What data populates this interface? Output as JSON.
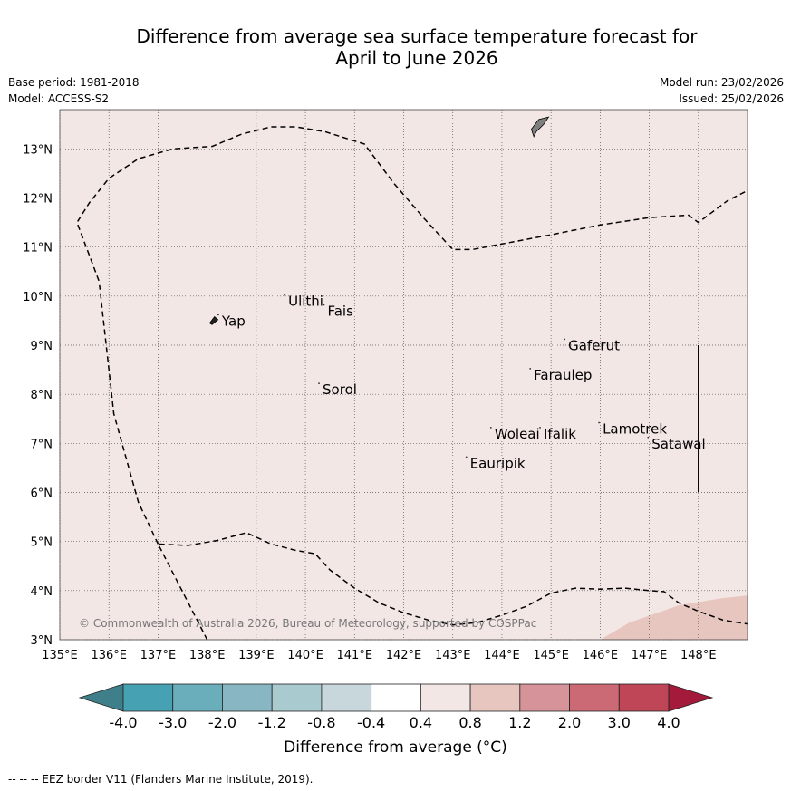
{
  "title": {
    "line1": "Difference from average sea surface temperature forecast for",
    "line2": "April to June 2026"
  },
  "meta": {
    "base_period": "Base period: 1981-2018",
    "model": "Model: ACCESS-S2",
    "model_run": "Model run: 23/02/2026",
    "issued": "Issued: 25/02/2026"
  },
  "map": {
    "lon_range": [
      135,
      149
    ],
    "lat_range": [
      3,
      13.8
    ],
    "lon_ticks": [
      "135°E",
      "136°E",
      "137°E",
      "138°E",
      "139°E",
      "140°E",
      "141°E",
      "142°E",
      "143°E",
      "144°E",
      "145°E",
      "146°E",
      "147°E",
      "148°E"
    ],
    "lat_ticks": [
      "3°N",
      "4°N",
      "5°N",
      "6°N",
      "7°N",
      "8°N",
      "9°N",
      "10°N",
      "11°N",
      "12°N",
      "13°N"
    ],
    "background_color": "#f3e7e6",
    "warm_patch_color": "#e6c6bf",
    "copyright": "© Commonwealth of Australia 2026, Bureau of Meteorology, supported by COSPPac",
    "places": [
      {
        "name": "Yap",
        "lon": 138.3,
        "lat": 9.4
      },
      {
        "name": "Ulithi",
        "lon": 139.65,
        "lat": 9.8
      },
      {
        "name": "Fais",
        "lon": 140.45,
        "lat": 9.6
      },
      {
        "name": "Sorol",
        "lon": 140.35,
        "lat": 8.0
      },
      {
        "name": "Gaferut",
        "lon": 145.35,
        "lat": 8.9
      },
      {
        "name": "Faraulep",
        "lon": 144.65,
        "lat": 8.3
      },
      {
        "name": "Woleai",
        "lon": 143.85,
        "lat": 7.1
      },
      {
        "name": "Ifalik",
        "lon": 144.85,
        "lat": 7.1
      },
      {
        "name": "Eauripik",
        "lon": 143.35,
        "lat": 6.5
      },
      {
        "name": "Lamotrek",
        "lon": 146.05,
        "lat": 7.2
      },
      {
        "name": "Satawal",
        "lon": 147.05,
        "lat": 6.9
      }
    ]
  },
  "colorbar": {
    "labels": [
      "-4.0",
      "-3.0",
      "-2.0",
      "-1.2",
      "-0.8",
      "-0.4",
      "0.4",
      "0.8",
      "1.2",
      "2.0",
      "3.0",
      "4.0"
    ],
    "colors": [
      "#3f7f8a",
      "#46a1b2",
      "#6aaebb",
      "#88b7c3",
      "#a9cacf",
      "#c8d7dc",
      "#ffffff",
      "#f3e7e6",
      "#e6c6bf",
      "#d6949a",
      "#cb6a75",
      "#bf4657",
      "#a31a3b"
    ],
    "title": "Difference from average (°C)"
  },
  "footer": "-- -- -- EEZ border V11 (Flanders Marine Institute, 2019)."
}
